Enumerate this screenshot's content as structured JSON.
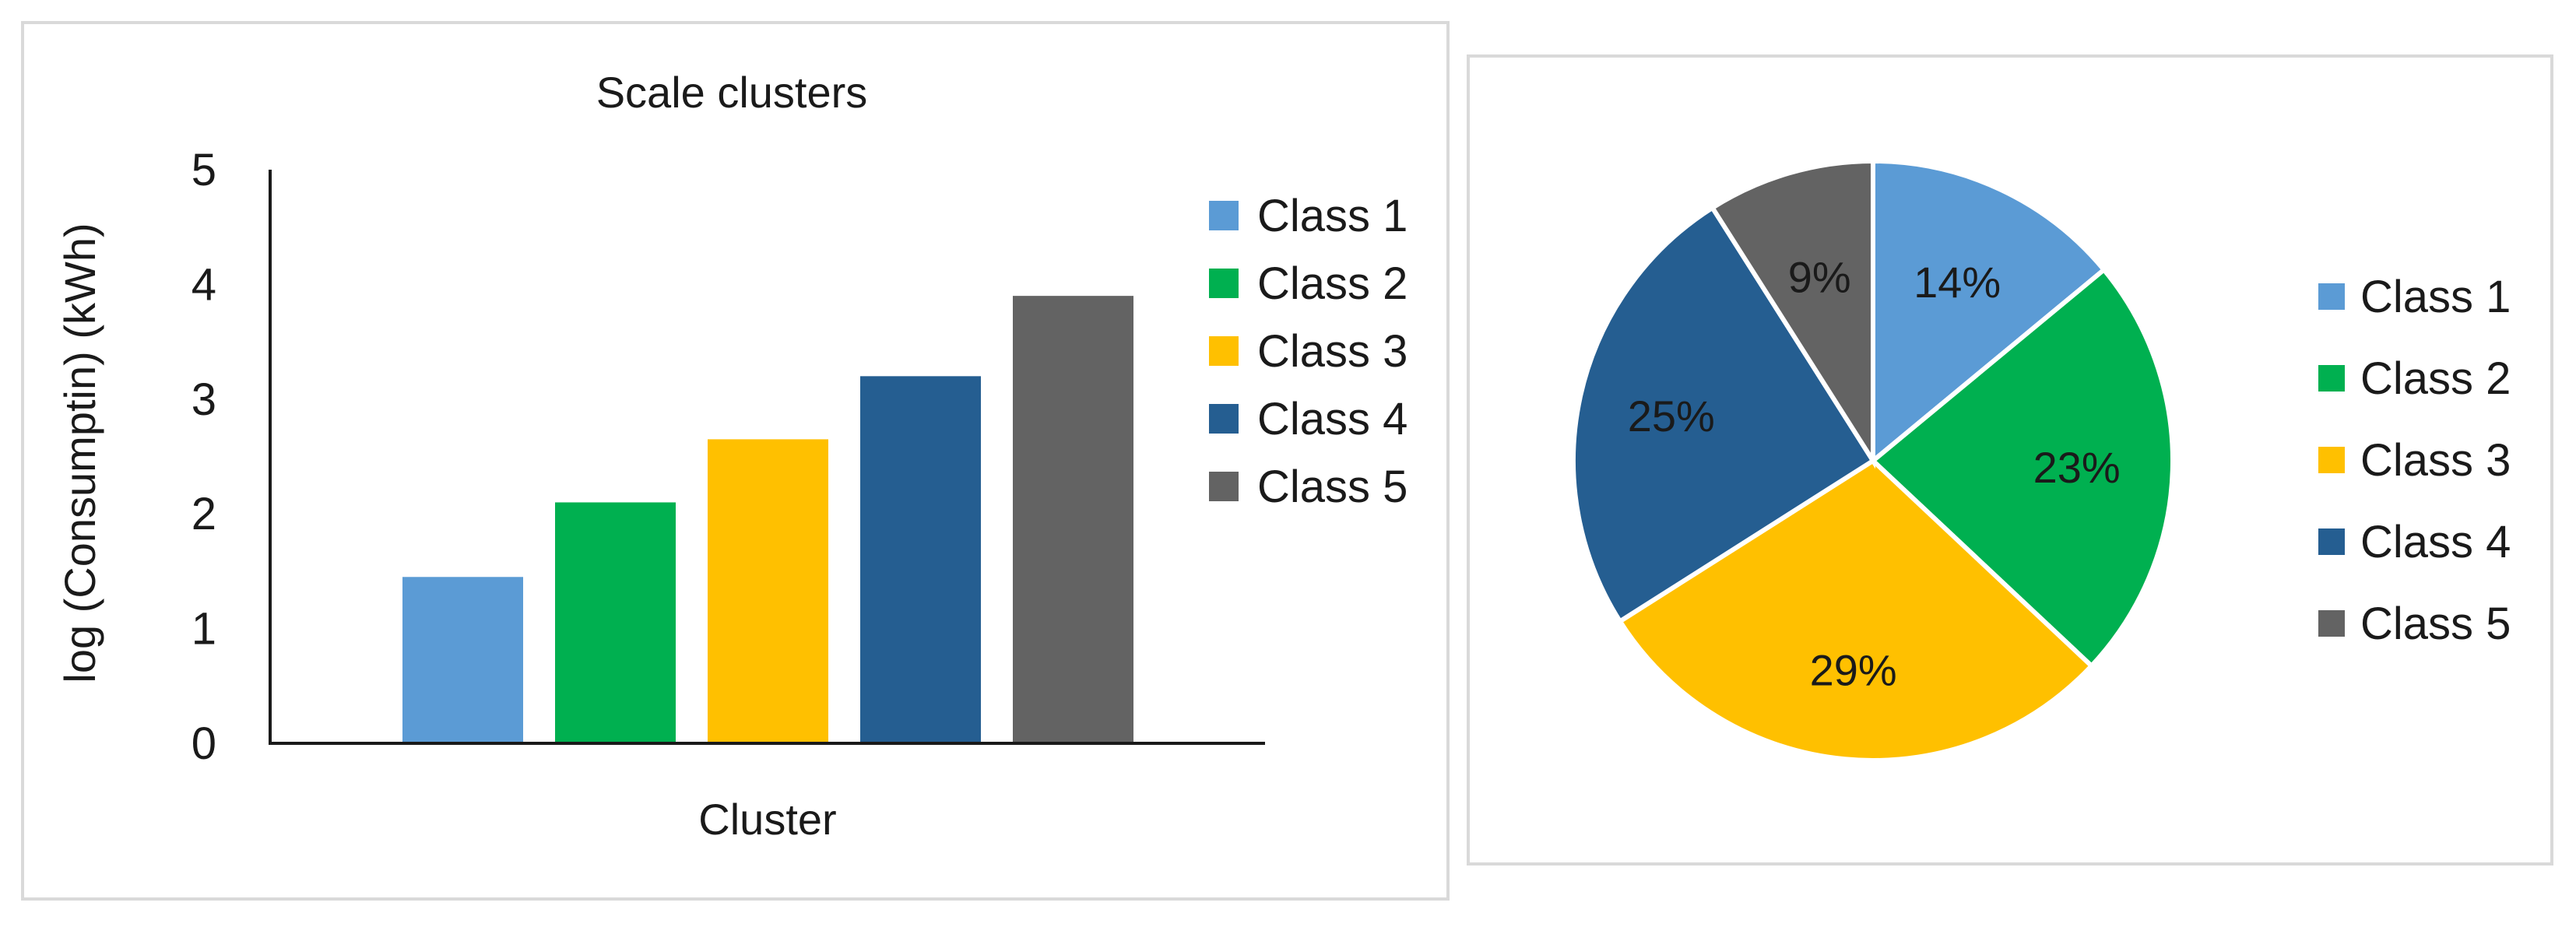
{
  "chart_data": [
    {
      "type": "bar",
      "title": "Scale clusters",
      "xlabel": "Cluster",
      "ylabel": "log (Consumptin) (kWh)",
      "ylim": [
        0,
        5
      ],
      "yticks": [
        "0",
        "1",
        "2",
        "3",
        "4",
        "5"
      ],
      "grid": false,
      "legend_position": "right",
      "series": [
        {
          "name": "Class 1",
          "color": "#5b9bd5",
          "value": 1.45
        },
        {
          "name": "Class 2",
          "color": "#00b050",
          "value": 2.1
        },
        {
          "name": "Class 3",
          "color": "#ffc000",
          "value": 2.65
        },
        {
          "name": "Class 4",
          "color": "#255e91",
          "value": 3.2
        },
        {
          "name": "Class 5",
          "color": "#636363",
          "value": 3.9
        }
      ]
    },
    {
      "type": "pie",
      "legend_position": "right",
      "slices": [
        {
          "name": "Class 1",
          "color": "#5b9bd5",
          "value": 14,
          "label": "14%"
        },
        {
          "name": "Class 2",
          "color": "#00b050",
          "value": 23,
          "label": "23%"
        },
        {
          "name": "Class 3",
          "color": "#ffc000",
          "value": 29,
          "label": "29%"
        },
        {
          "name": "Class 4",
          "color": "#255e91",
          "value": 25,
          "label": "25%"
        },
        {
          "name": "Class 5",
          "color": "#636363",
          "value": 9,
          "label": "9%"
        }
      ]
    }
  ]
}
